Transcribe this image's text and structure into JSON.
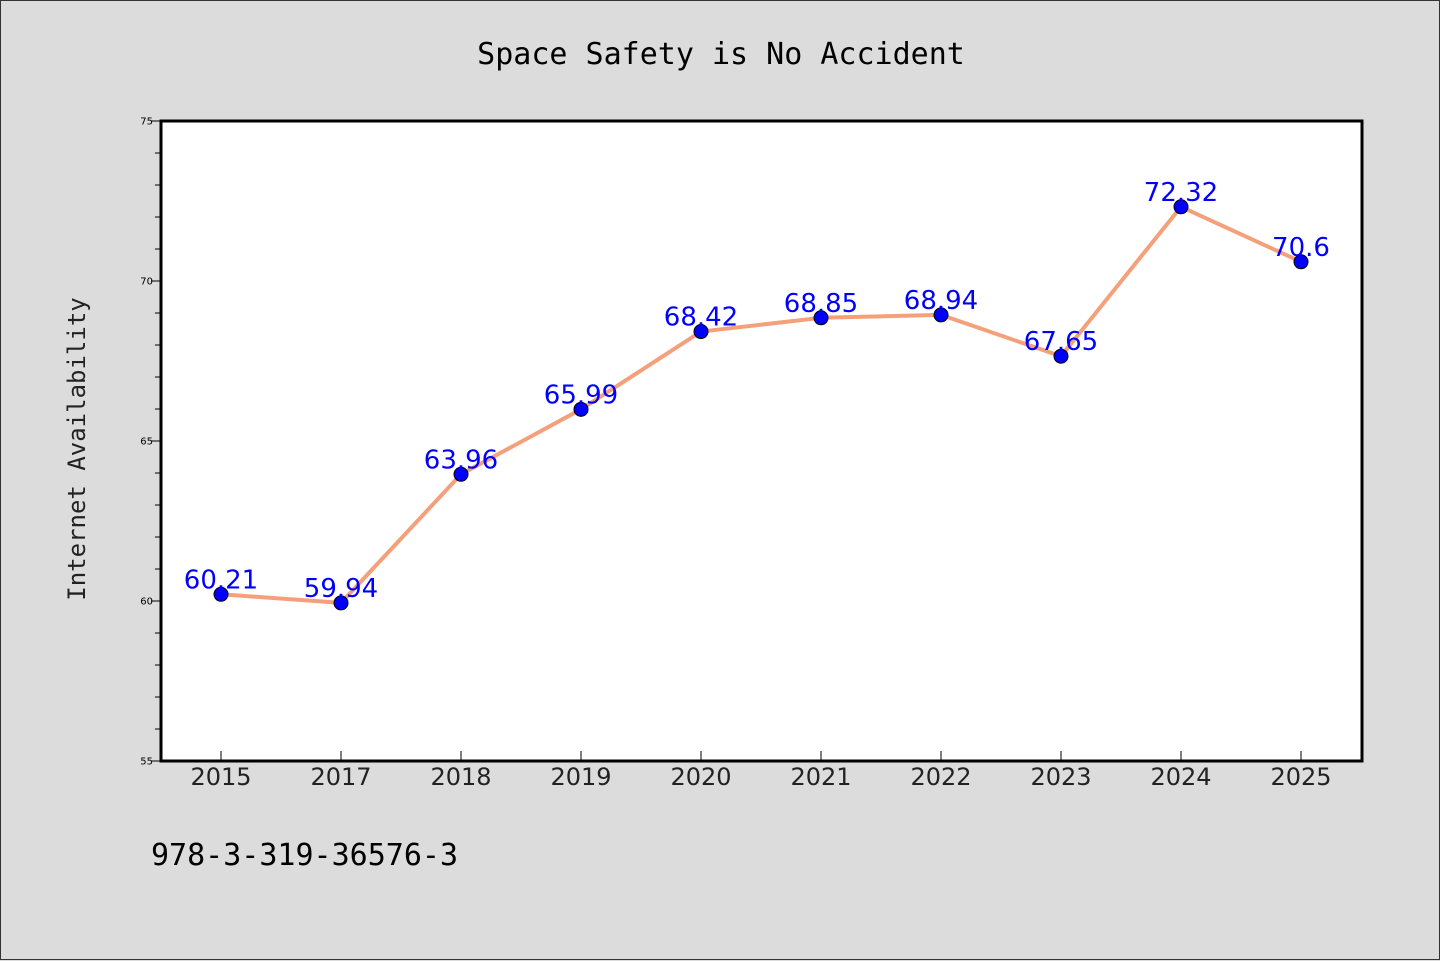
{
  "chart_data": {
    "type": "line",
    "title": "Space Safety is No Accident",
    "xlabel": "",
    "ylabel": "Internet Availability",
    "categories": [
      "2015",
      "2017",
      "2018",
      "2019",
      "2020",
      "2021",
      "2022",
      "2023",
      "2024",
      "2025"
    ],
    "series": [
      {
        "values": [
          60.21,
          59.94,
          63.96,
          65.99,
          68.42,
          68.85,
          68.94,
          67.65,
          72.32,
          70.6
        ],
        "data_labels": [
          "60.21",
          "59.94",
          "63.96",
          "65.99",
          "68.42",
          "68.85",
          "68.94",
          "67.65",
          "72.32",
          "70.6"
        ],
        "line_color": "#f4a07a",
        "marker_color": "#0000ff"
      }
    ],
    "ylim": [
      55,
      75
    ],
    "yticks": [
      "55",
      "60",
      "65",
      "70",
      "75"
    ],
    "grid": false,
    "legend": "none"
  },
  "footer": {
    "text": "978-3-319-36576-3"
  },
  "colors": {
    "background": "#dcdcdc",
    "plot_background": "#ffffff",
    "line": "#f4a07a",
    "marker": "#0000ff",
    "data_label": "#0000ff"
  }
}
